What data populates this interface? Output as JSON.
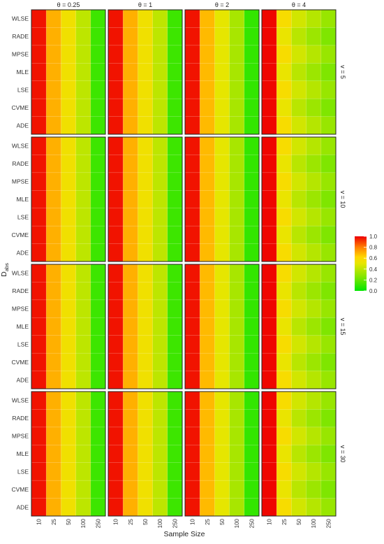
{
  "chart_data": {
    "type": "heatmap",
    "title": "",
    "xlabel": "Sample Size",
    "ylabel": "D_abs",
    "ylabel_main": "D",
    "ylabel_sub": "abs",
    "x_categories": [
      "10",
      "25",
      "50",
      "100",
      "250"
    ],
    "y_categories": [
      "WLSE",
      "RADE",
      "MPSE",
      "MLE",
      "LSE",
      "CVME",
      "ADE"
    ],
    "facet_columns": [
      "θ = 0.25",
      "θ = 1",
      "θ = 2",
      "θ = 4"
    ],
    "facet_rows": [
      "v = 5",
      "v = 10",
      "v = 15",
      "v = 30"
    ],
    "legend": {
      "placement": "right",
      "ticks": [
        "1.0",
        "0.8",
        "0.6",
        "0.4",
        "0.2",
        "0.0"
      ],
      "range": [
        0,
        1
      ],
      "colors": [
        "#00e600",
        "#7fe600",
        "#e6e600",
        "#ffd700",
        "#ff8000",
        "#ee0000"
      ]
    },
    "grid": true,
    "panel_values": {
      "theta_0.25": [
        0.97,
        0.7,
        0.55,
        0.4,
        0.12
      ],
      "theta_1": [
        0.97,
        0.7,
        0.55,
        0.4,
        0.12
      ],
      "theta_2": [
        0.97,
        0.68,
        0.5,
        0.35,
        0.1
      ],
      "theta_4": [
        0.99,
        0.55,
        0.42,
        0.35,
        0.28
      ]
    }
  }
}
